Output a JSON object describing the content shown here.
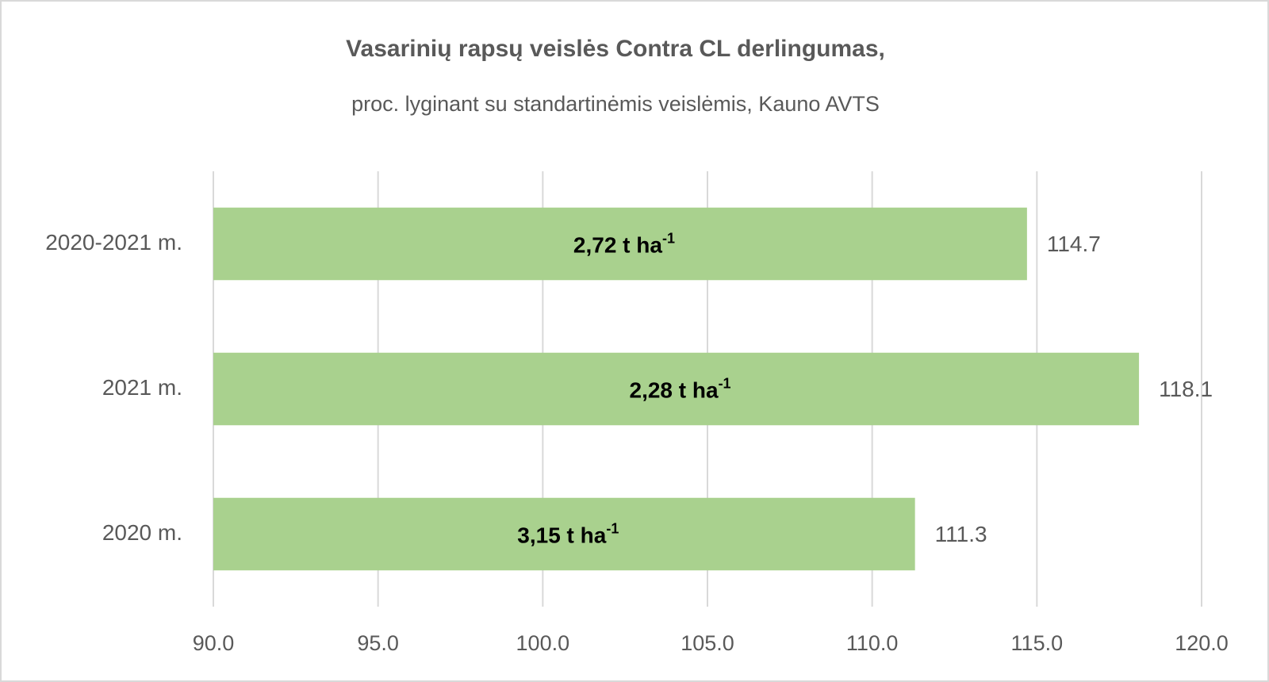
{
  "chart_data": {
    "type": "hbar",
    "title": "Vasarinių rapsų veislės Contra CL derlingumas,",
    "subtitle": "proc. lyginant su standartinėmis veislėmis,  Kauno AVTS",
    "categories": [
      "2020-2021 m.",
      "2021 m.",
      "2020 m."
    ],
    "values": [
      114.7,
      118.1,
      111.3
    ],
    "bar_annotations": [
      {
        "text": "2,72 t ha",
        "sup": "-1"
      },
      {
        "text": "2,28 t ha",
        "sup": "-1"
      },
      {
        "text": "3,15 t ha",
        "sup": "-1"
      }
    ],
    "color": "#a9d18e",
    "xlim": [
      90,
      120
    ],
    "xticks": [
      {
        "value": 90,
        "label": "90.0"
      },
      {
        "value": 95,
        "label": "95.0"
      },
      {
        "value": 100,
        "label": "100.0"
      },
      {
        "value": 105,
        "label": "105.0"
      },
      {
        "value": 110,
        "label": "110.0"
      },
      {
        "value": 115,
        "label": "115.0"
      },
      {
        "value": 120,
        "label": "120.0"
      }
    ],
    "grid": true
  }
}
